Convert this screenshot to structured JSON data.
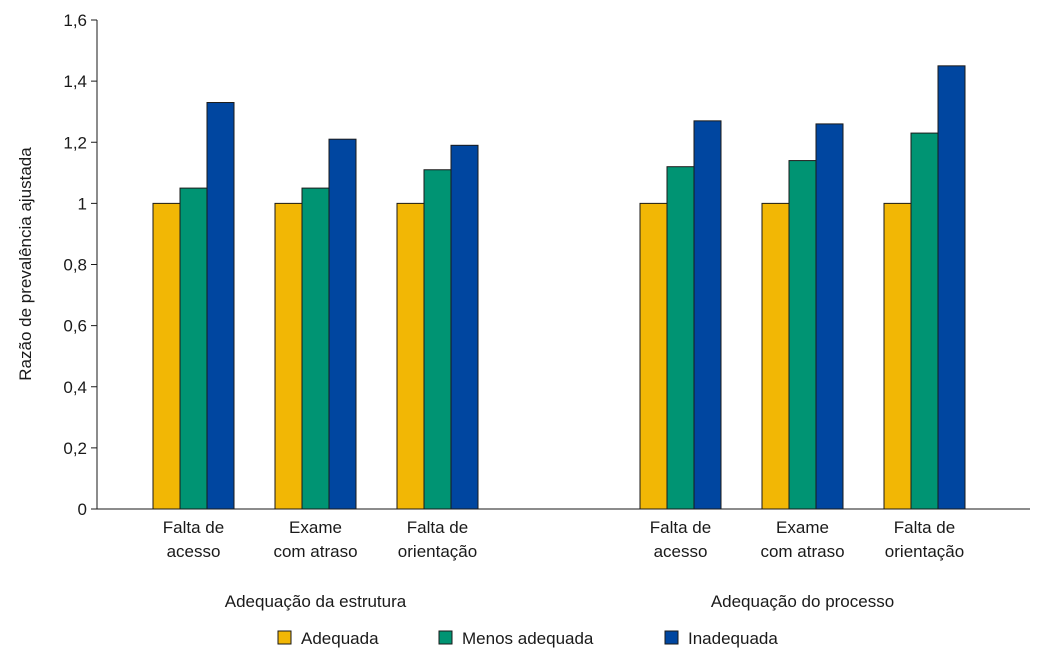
{
  "chart_data": {
    "type": "bar",
    "ylabel": "Razão de prevalência ajustada",
    "ylim": [
      0,
      1.6
    ],
    "yticks": [
      {
        "value": 0,
        "label": "0"
      },
      {
        "value": 0.2,
        "label": "0,2"
      },
      {
        "value": 0.4,
        "label": "0,4"
      },
      {
        "value": 0.6,
        "label": "0,6"
      },
      {
        "value": 0.8,
        "label": "0,8"
      },
      {
        "value": 1.0,
        "label": "1"
      },
      {
        "value": 1.2,
        "label": "1,2"
      },
      {
        "value": 1.4,
        "label": "1,4"
      },
      {
        "value": 1.6,
        "label": "1,6"
      }
    ],
    "grid": false,
    "legend_position": "bottom",
    "series": [
      {
        "name": "Adequada",
        "color": "#F2B705"
      },
      {
        "name": "Menos adequada",
        "color": "#009473"
      },
      {
        "name": "Inadequada",
        "color": "#0046A0"
      }
    ],
    "groups": [
      {
        "label": "Adequação da estrutura",
        "categories": [
          {
            "label": [
              "Falta de",
              "acesso"
            ],
            "values": [
              1.0,
              1.05,
              1.33
            ]
          },
          {
            "label": [
              "Exame",
              "com atraso"
            ],
            "values": [
              1.0,
              1.05,
              1.21
            ]
          },
          {
            "label": [
              "Falta de",
              "orientação"
            ],
            "values": [
              1.0,
              1.11,
              1.19
            ]
          }
        ]
      },
      {
        "label": "Adequação do processo",
        "categories": [
          {
            "label": [
              "Falta de",
              "acesso"
            ],
            "values": [
              1.0,
              1.12,
              1.27
            ]
          },
          {
            "label": [
              "Exame",
              "com atraso"
            ],
            "values": [
              1.0,
              1.14,
              1.26
            ]
          },
          {
            "label": [
              "Falta de",
              "orientação"
            ],
            "values": [
              1.0,
              1.23,
              1.45
            ]
          }
        ]
      }
    ]
  }
}
